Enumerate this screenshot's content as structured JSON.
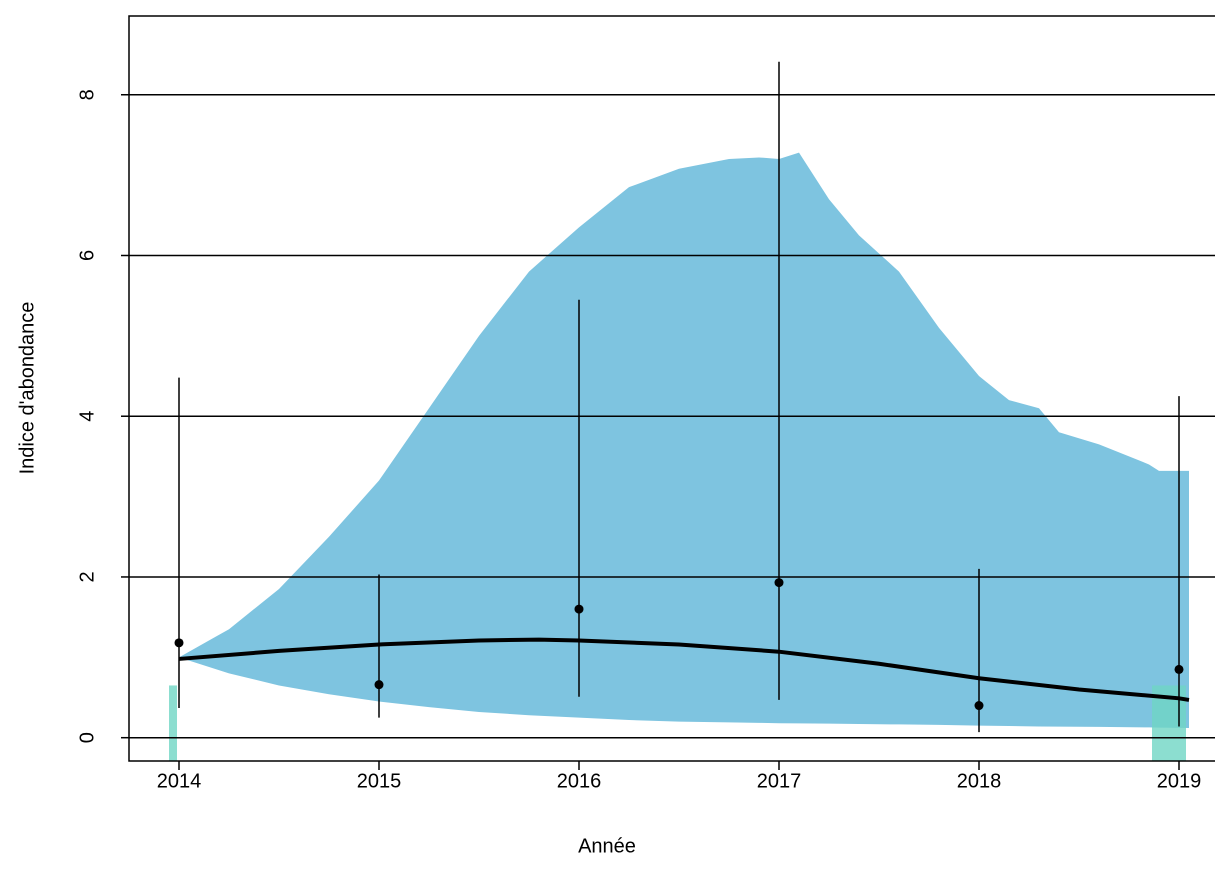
{
  "chart_data": {
    "type": "line",
    "x_label": "Année",
    "y_label": "Indice d'abondance",
    "xlim": [
      2013.75,
      2019.18
    ],
    "ylim": [
      -0.29,
      8.98
    ],
    "xticks": [
      2014,
      2015,
      2016,
      2017,
      2018,
      2019
    ],
    "yticks": [
      0,
      2,
      4,
      6,
      8
    ],
    "grid": true,
    "band": {
      "color": "#7ec4e0",
      "x": [
        2014,
        2014.25,
        2014.5,
        2014.75,
        2015,
        2015.25,
        2015.5,
        2015.75,
        2016,
        2016.25,
        2016.5,
        2016.75,
        2016.9,
        2017,
        2017.1,
        2017.25,
        2017.4,
        2017.6,
        2017.8,
        2018,
        2018.15,
        2018.3,
        2018.4,
        2018.6,
        2018.85,
        2018.9,
        2019.05
      ],
      "upper": [
        1.0,
        1.35,
        1.85,
        2.5,
        3.2,
        4.1,
        5.0,
        5.8,
        6.35,
        6.85,
        7.08,
        7.2,
        7.22,
        7.2,
        7.28,
        6.7,
        6.25,
        5.8,
        5.1,
        4.5,
        4.2,
        4.1,
        3.8,
        3.65,
        3.4,
        3.32,
        3.32
      ],
      "lower": [
        1.0,
        0.8,
        0.65,
        0.54,
        0.45,
        0.38,
        0.32,
        0.28,
        0.25,
        0.22,
        0.2,
        0.19,
        0.185,
        0.18,
        0.178,
        0.175,
        0.17,
        0.165,
        0.16,
        0.15,
        0.145,
        0.14,
        0.138,
        0.134,
        0.128,
        0.125,
        0.12
      ]
    },
    "trend": {
      "color": "#000000",
      "x": [
        2014,
        2014.5,
        2015,
        2015.5,
        2015.8,
        2016,
        2016.5,
        2017,
        2017.5,
        2018,
        2018.5,
        2019,
        2019.05
      ],
      "values": [
        0.98,
        1.08,
        1.16,
        1.21,
        1.22,
        1.21,
        1.16,
        1.07,
        0.92,
        0.74,
        0.6,
        0.49,
        0.47
      ]
    },
    "points": {
      "color": "#000000",
      "x": [
        2014,
        2015,
        2016,
        2017,
        2018,
        2019
      ],
      "values": [
        1.18,
        0.66,
        1.6,
        1.93,
        0.4,
        0.85
      ],
      "lower": [
        0.37,
        0.25,
        0.51,
        0.47,
        0.07,
        0.14
      ],
      "upper": [
        4.48,
        2.03,
        5.45,
        8.41,
        2.1,
        4.25
      ]
    },
    "rug": {
      "color": "#6fd6c4",
      "x": [
        2013.97,
        2018.95
      ],
      "values": [
        0.65,
        0.65
      ]
    }
  }
}
